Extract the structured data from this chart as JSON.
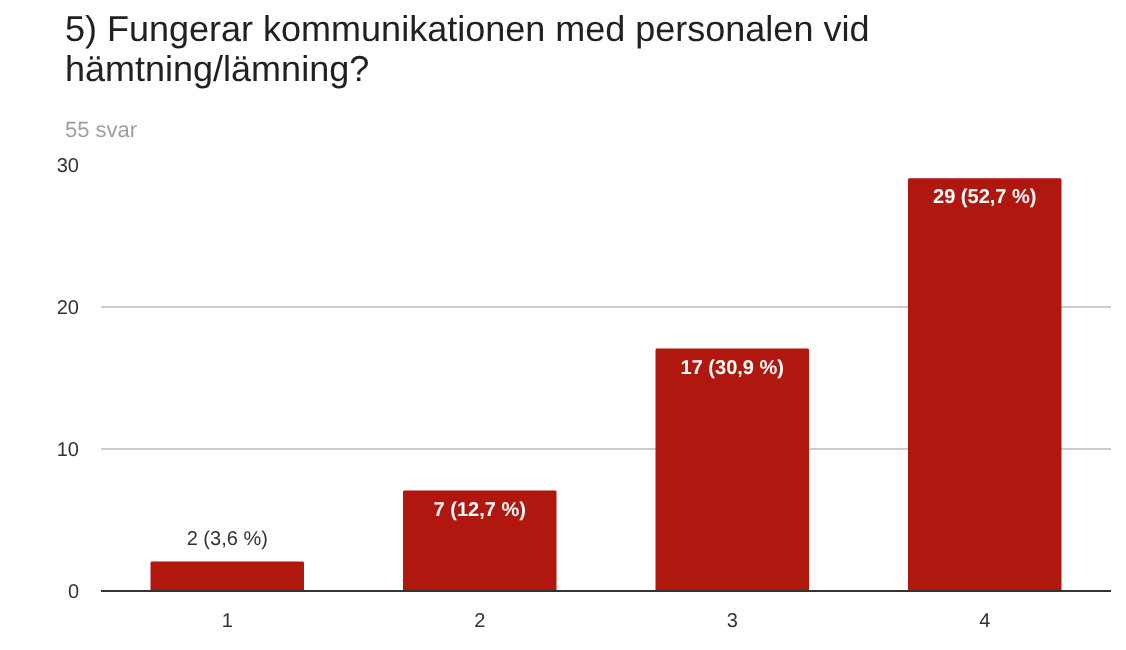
{
  "chart_data": {
    "type": "bar",
    "title": "5) Fungerar kommunikationen med personalen vid hämtning/lämning?",
    "subtitle": "55 svar",
    "categories": [
      "1",
      "2",
      "3",
      "4"
    ],
    "values": [
      2,
      7,
      17,
      29
    ],
    "value_labels": [
      "2 (3,6 %)",
      "7 (12,7 %)",
      "17 (30,9 %)",
      "29 (52,7 %)"
    ],
    "color": "#b0170f",
    "ylim": [
      0,
      30
    ],
    "yticks": [
      0,
      10,
      20,
      30
    ],
    "grid": "y"
  }
}
